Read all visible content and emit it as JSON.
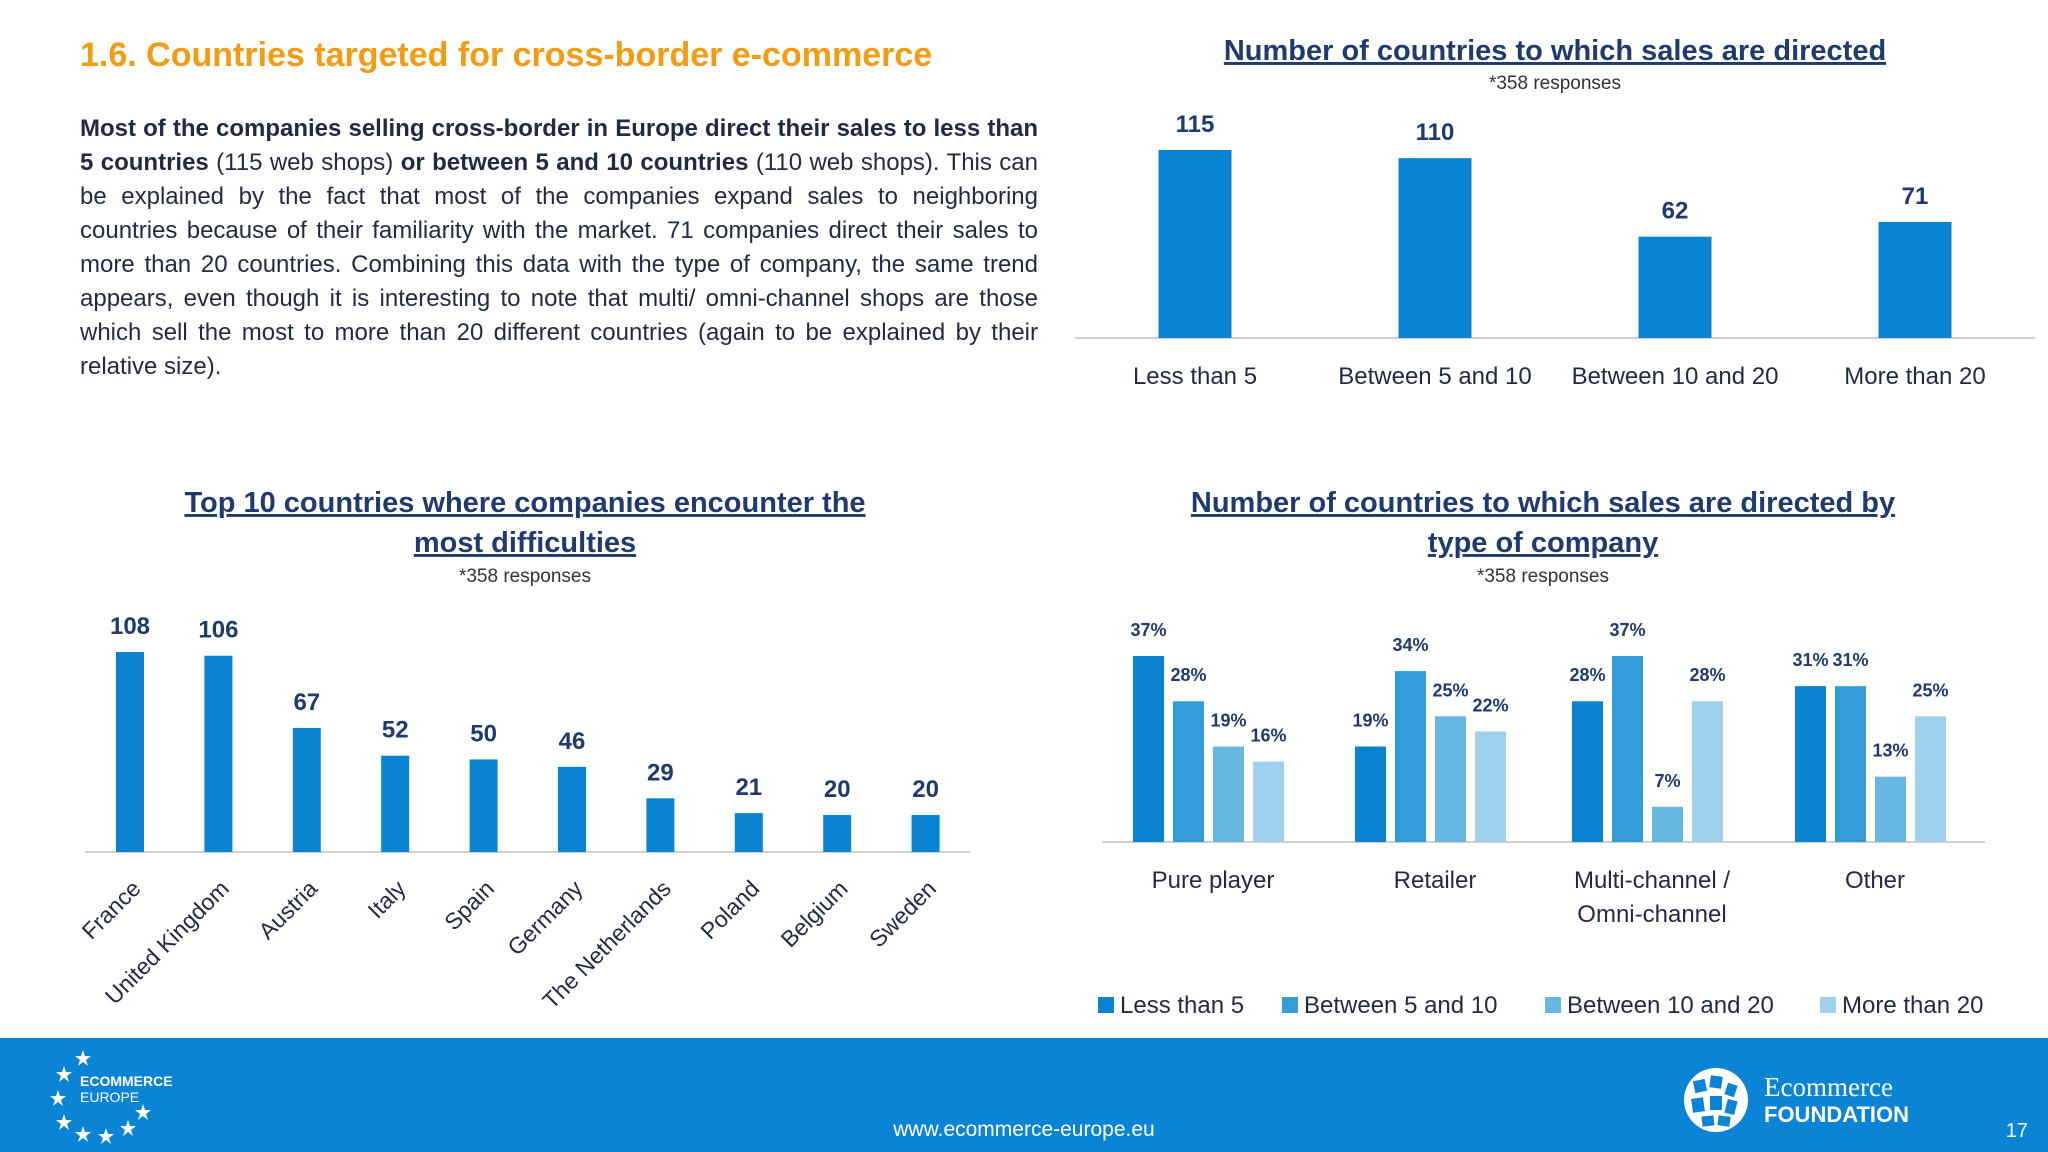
{
  "page": {
    "title": "1.6. Countries targeted for cross-border e-commerce",
    "body": {
      "p1": "Most of the companies selling cross-border in Europe direct their sales to less than 5 countries",
      "p2": " (115 web shops) ",
      "p3": "or between 5 and 10 countries",
      "p4": " (110 web shops). This can be explained by the fact that most of the companies expand sales to neighboring countries because of their familiarity with the market. 71 companies direct their sales to more than 20 countries. Combining this data with the type of company, the same trend appears, even though it is interesting to note that multi/ omni-channel shops are those which sell the most to more than 20 different countries (again to be explained by their relative size)."
    },
    "footer": {
      "url": "www.ecommerce-europe.eu",
      "page_number": "17",
      "logo_left_line1": "ECOMMERCE",
      "logo_left_line2": "EUROPE",
      "logo_right_line1": "Ecommerce",
      "logo_right_line2": "FOUNDATION"
    }
  },
  "colors": {
    "bar": "#0a84d0",
    "series": [
      "#0a84d0",
      "#339dd8",
      "#66b8e2",
      "#9fd1ee"
    ],
    "axis": "#d0d0d0",
    "footer": "#0b84d6",
    "title": "#f39c12"
  },
  "chart_data": [
    {
      "type": "bar",
      "title": "Number of countries to which sales are directed",
      "subtitle": "*358 responses",
      "categories": [
        "Less than 5",
        "Between 5 and 10",
        "Between 10 and 20",
        "More than 20"
      ],
      "values": [
        115,
        110,
        62,
        71
      ],
      "ylim": [
        0,
        120
      ]
    },
    {
      "type": "bar",
      "title_line1": "Top 10 countries where companies encounter the",
      "title_line2": "most difficulties",
      "subtitle": "*358 responses",
      "categories": [
        "France",
        "United Kingdom",
        "Austria",
        "Italy",
        "Spain",
        "Germany",
        "The Netherlands",
        "Poland",
        "Belgium",
        "Sweden"
      ],
      "values": [
        108,
        106,
        67,
        52,
        50,
        46,
        29,
        21,
        20,
        20
      ],
      "ylim": [
        0,
        115
      ]
    },
    {
      "type": "bar",
      "title_line1": "Number of countries to which sales are directed by",
      "title_line2": "type of company",
      "subtitle": "*358 responses",
      "categories": [
        "Pure player",
        "Retailer",
        "Multi-channel /\nOmni-channel",
        "Other"
      ],
      "series": [
        {
          "name": "Less than 5",
          "values": [
            37,
            19,
            28,
            31
          ]
        },
        {
          "name": "Between 5 and 10",
          "values": [
            28,
            34,
            37,
            31
          ]
        },
        {
          "name": "Between 10 and 20",
          "values": [
            19,
            25,
            7,
            13
          ]
        },
        {
          "name": "More than 20",
          "values": [
            16,
            22,
            28,
            25
          ]
        }
      ],
      "unit": "%",
      "ylim": [
        0,
        40
      ],
      "legend_position": "bottom"
    }
  ]
}
